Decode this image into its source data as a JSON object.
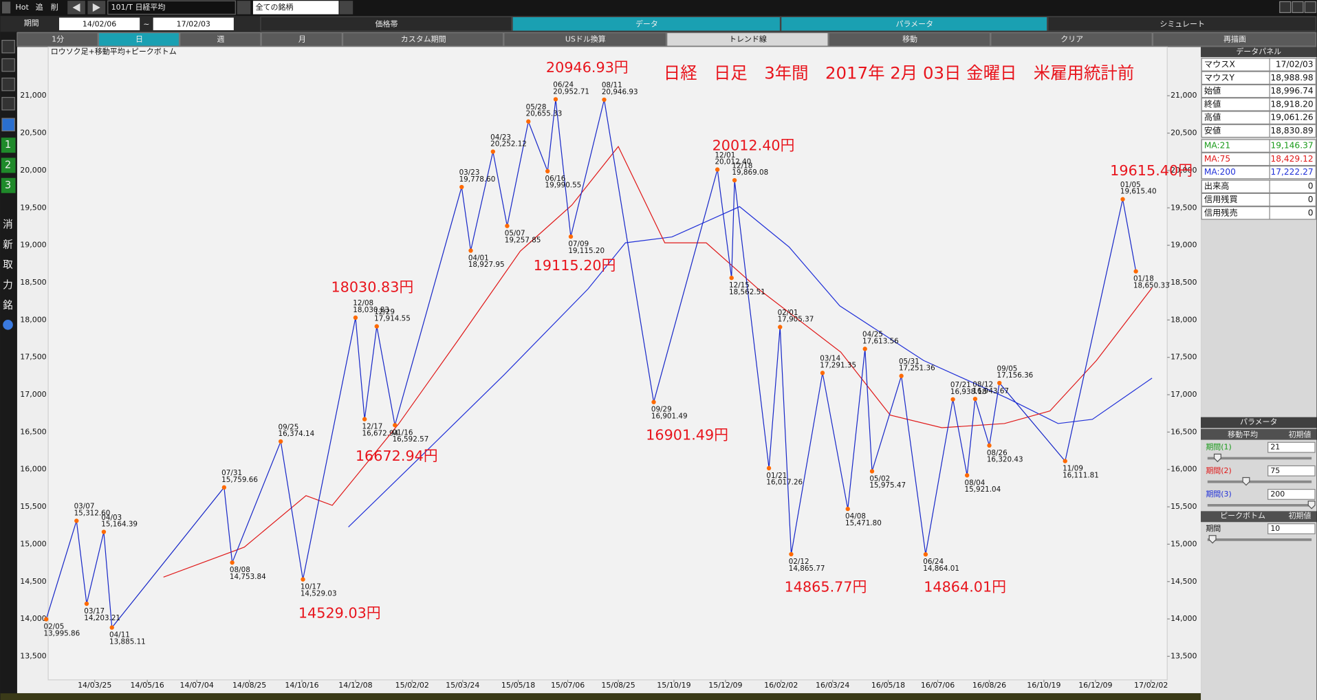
{
  "toolbar": {
    "hot": "Hot",
    "add": "追",
    "del": "削",
    "symbol": "101/T 日経平均",
    "filter": "全ての銘柄",
    "period_label": "期間",
    "from": "14/02/06",
    "tilde": "~",
    "to": "17/02/03",
    "tabs": [
      "価格帯",
      "データ",
      "パラメータ",
      "シミュレート"
    ],
    "buttons": [
      "1分",
      "日",
      "週",
      "月",
      "カスタム期間",
      "USドル換算",
      "トレンド線",
      "移動",
      "クリア",
      "再描画"
    ]
  },
  "sidebar": {
    "labels": [
      "1",
      "2",
      "3",
      "消",
      "新",
      "取",
      "力",
      "銘"
    ]
  },
  "data_panel": {
    "title": "データパネル",
    "rows": [
      [
        "マウスX",
        "17/02/03"
      ],
      [
        "マウスY",
        "18,988.98"
      ],
      [
        "始値",
        "18,996.74"
      ],
      [
        "終値",
        "18,918.20"
      ],
      [
        "高値",
        "19,061.26"
      ],
      [
        "安値",
        "18,830.89"
      ],
      [
        "MA:21",
        "19,146.37"
      ],
      [
        "MA:75",
        "18,429.12"
      ],
      [
        "MA:200",
        "17,222.27"
      ],
      [
        "出来高",
        "0"
      ],
      [
        "信用残買",
        "0"
      ],
      [
        "信用残売",
        "0"
      ]
    ]
  },
  "parameters": {
    "title": "パラメータ",
    "moving_average": "移動平均",
    "default": "初期値",
    "periods": [
      [
        "期間(1)",
        "21"
      ],
      [
        "期間(2)",
        "75"
      ],
      [
        "期間(3)",
        "200"
      ]
    ],
    "peak_bottom": "ピークボトム",
    "peak_default": "初期値",
    "peak_period": [
      "期間",
      "10"
    ]
  },
  "chart_data": {
    "type": "line",
    "title": "日経　日足　3年間　2017年 2月 03日 金曜日　米雇用統計前",
    "subtitle": "ロウソク足+移動平均+ピークボトム",
    "xlim": [
      "14/02/07",
      "17/02/18"
    ],
    "xticks": [
      "14/03/25",
      "14/05/16",
      "14/07/04",
      "14/08/25",
      "14/10/16",
      "14/12/08",
      "15/02/02",
      "15/03/24",
      "15/05/18",
      "15/07/06",
      "15/08/25",
      "15/10/19",
      "15/12/09",
      "16/02/02",
      "16/03/24",
      "16/05/18",
      "16/07/06",
      "16/08/26",
      "16/10/19",
      "16/12/09",
      "17/02/02"
    ],
    "ylim": [
      13185,
      21652
    ],
    "yticks": [
      {
        "value": 13500,
        "label": "13,500"
      },
      {
        "value": 14000,
        "label": "14,000"
      },
      {
        "value": 14500,
        "label": "14,500"
      },
      {
        "value": 15000,
        "label": "15,000"
      },
      {
        "value": 15500,
        "label": "15,500"
      },
      {
        "value": 16000,
        "label": "16,000"
      },
      {
        "value": 16500,
        "label": "16,500"
      },
      {
        "value": 17000,
        "label": "17,000"
      },
      {
        "value": 17500,
        "label": "17,500"
      },
      {
        "value": 18000,
        "label": "18,000"
      },
      {
        "value": 18500,
        "label": "18,500"
      },
      {
        "value": 19000,
        "label": "19,000"
      },
      {
        "value": 19500,
        "label": "19,500"
      },
      {
        "value": 20000,
        "label": "20,000"
      },
      {
        "value": 20500,
        "label": "20,500"
      },
      {
        "value": 21000,
        "label": "21,000"
      }
    ],
    "grid": false,
    "series": [
      {
        "color": "#2030d8",
        "x": [
          "14/12/01",
          "15/02/10",
          "15/05/04",
          "15/07/26",
          "15/09/01",
          "15/10/17",
          "15/12/23",
          "16/02/10",
          "16/03/31",
          "16/06/22",
          "16/09/13",
          "16/11/02",
          "16/12/06",
          "17/02/03"
        ],
        "values": [
          15230,
          16165,
          17267,
          18414,
          19032,
          19111,
          19516,
          18976,
          18189,
          17458,
          16952,
          16615,
          16671,
          17222.27
        ]
      },
      {
        "color": "#e01818",
        "x": [
          "14/06/01",
          "14/08/20",
          "14/10/20",
          "14/11/15",
          "15/01/20",
          "15/03/20",
          "15/05/20",
          "15/07/10",
          "15/08/25",
          "15/10/10",
          "15/11/20",
          "16/01/10",
          "16/04/01",
          "16/05/20",
          "16/07/10",
          "16/09/10",
          "16/10/25",
          "16/12/10",
          "17/02/03"
        ],
        "values": [
          14560,
          14960,
          15650,
          15520,
          16615,
          17740,
          18920,
          19538,
          20320,
          19032,
          19032,
          18420,
          17570,
          16727,
          16558,
          16614,
          16783,
          17458,
          18429.12
        ]
      }
    ],
    "points": {
      "color": "#ff6a00",
      "line_color": "#1828c8",
      "x": [
        "14/02/05",
        "14/03/07",
        "14/03/17",
        "14/04/03",
        "14/04/11",
        "14/07/31",
        "14/08/08",
        "14/09/25",
        "14/10/17",
        "14/12/08",
        "14/12/17",
        "14/12/29",
        "15/01/16",
        "15/03/23",
        "15/04/01",
        "15/04/23",
        "15/05/07",
        "15/05/28",
        "15/06/16",
        "15/06/24",
        "15/07/09",
        "15/08/11",
        "15/09/29",
        "15/12/01",
        "15/12/15",
        "15/12/18",
        "16/01/21",
        "16/02/01",
        "16/02/12",
        "16/03/14",
        "16/04/08",
        "16/04/25",
        "16/05/02",
        "16/05/31",
        "16/06/24",
        "16/07/21",
        "16/08/04",
        "16/08/12",
        "16/08/26",
        "16/09/05",
        "16/11/09",
        "17/01/05",
        "17/01/18"
      ],
      "labels": [
        "02/05",
        "03/07",
        "03/17",
        "04/03",
        "04/11",
        "07/31",
        "08/08",
        "09/25",
        "10/17",
        "12/08",
        "12/17",
        "12/29",
        "01/16",
        "03/23",
        "04/01",
        "04/23",
        "05/07",
        "05/28",
        "06/16",
        "06/24",
        "07/09",
        "08/11",
        "09/29",
        "12/01",
        "12/15",
        "12/18",
        "01/21",
        "02/01",
        "02/12",
        "03/14",
        "04/08",
        "04/25",
        "05/02",
        "05/31",
        "06/24",
        "07/21",
        "08/04",
        "08/12",
        "08/26",
        "09/05",
        "11/09",
        "01/05",
        "01/18"
      ],
      "values": [
        13995.86,
        15312.6,
        14203.21,
        15164.39,
        13885.11,
        15759.66,
        14753.84,
        16374.14,
        14529.03,
        18030.83,
        16672.94,
        17914.55,
        16592.57,
        19778.6,
        18927.95,
        20252.12,
        19257.85,
        20655.33,
        19990.55,
        20952.71,
        19115.2,
        20946.93,
        16901.49,
        20012.4,
        18562.51,
        19869.08,
        16017.26,
        17905.37,
        14865.77,
        17291.35,
        15471.8,
        17613.56,
        15975.47,
        17251.36,
        14864.01,
        16938.18,
        15921.04,
        16943.67,
        16320.43,
        17156.36,
        16111.81,
        19615.4,
        18650.33
      ],
      "value_labels": [
        "13,995.86",
        "15,312.60",
        "14,203.21",
        "15,164.39",
        "13,885.11",
        "15,759.66",
        "14,753.84",
        "16,374.14",
        "14,529.03",
        "18,030.83",
        "16,672.94",
        "17,914.55",
        "16,592.57",
        "19,778.60",
        "18,927.95",
        "20,252.12",
        "19,257.85",
        "20,655.33",
        "19,990.55",
        "20,952.71",
        "19,115.20",
        "20,946.93",
        "16,901.49",
        "20,012.40",
        "18,562.51",
        "19,869.08",
        "16,017.26",
        "17,905.37",
        "14,865.77",
        "17,291.35",
        "15,471.80",
        "17,613.56",
        "15,975.47",
        "17,251.36",
        "14,864.01",
        "16,938.18",
        "15,921.04",
        "16,943.67",
        "16,320.43",
        "17,156.36",
        "16,111.81",
        "19,615.40",
        "18,650.33"
      ]
    },
    "annotations": [
      "20946.93円",
      "20012.40円",
      "19615.40円",
      "18030.83円",
      "19115.20円",
      "16672.94円",
      "16901.49円",
      "14529.03円",
      "14865.77円",
      "14864.01円"
    ]
  }
}
